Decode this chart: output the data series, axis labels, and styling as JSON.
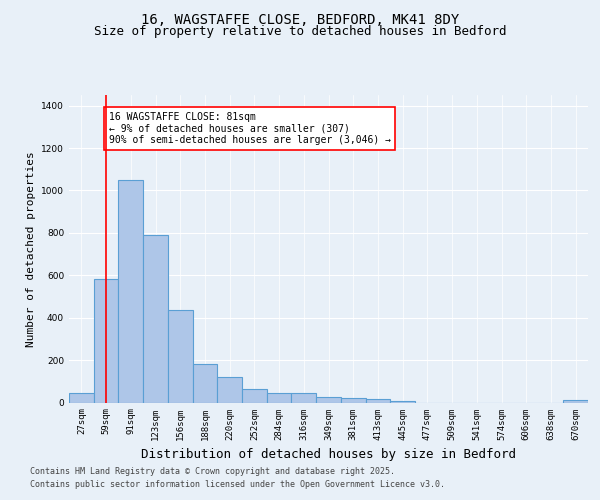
{
  "title1": "16, WAGSTAFFE CLOSE, BEDFORD, MK41 8DY",
  "title2": "Size of property relative to detached houses in Bedford",
  "xlabel": "Distribution of detached houses by size in Bedford",
  "ylabel": "Number of detached properties",
  "categories": [
    "27sqm",
    "59sqm",
    "91sqm",
    "123sqm",
    "156sqm",
    "188sqm",
    "220sqm",
    "252sqm",
    "284sqm",
    "316sqm",
    "349sqm",
    "381sqm",
    "413sqm",
    "445sqm",
    "477sqm",
    "509sqm",
    "541sqm",
    "574sqm",
    "606sqm",
    "638sqm",
    "670sqm"
  ],
  "values": [
    47,
    583,
    1048,
    790,
    435,
    182,
    122,
    63,
    47,
    47,
    27,
    20,
    15,
    9,
    0,
    0,
    0,
    0,
    0,
    0,
    14
  ],
  "bar_color": "#aec6e8",
  "bar_edge_color": "#5a9fd4",
  "bar_edge_width": 0.8,
  "vline_x": 1.0,
  "vline_color": "red",
  "annotation_box_text": "16 WAGSTAFFE CLOSE: 81sqm\n← 9% of detached houses are smaller (307)\n90% of semi-detached houses are larger (3,046) →",
  "ylim": [
    0,
    1450
  ],
  "yticks": [
    0,
    200,
    400,
    600,
    800,
    1000,
    1200,
    1400
  ],
  "background_color": "#e8f0f8",
  "plot_bg_color": "#e8f0f8",
  "footer1": "Contains HM Land Registry data © Crown copyright and database right 2025.",
  "footer2": "Contains public sector information licensed under the Open Government Licence v3.0.",
  "title_fontsize": 10,
  "subtitle_fontsize": 9,
  "tick_fontsize": 6.5,
  "ylabel_fontsize": 8,
  "xlabel_fontsize": 9,
  "annotation_fontsize": 7,
  "footer_fontsize": 6
}
